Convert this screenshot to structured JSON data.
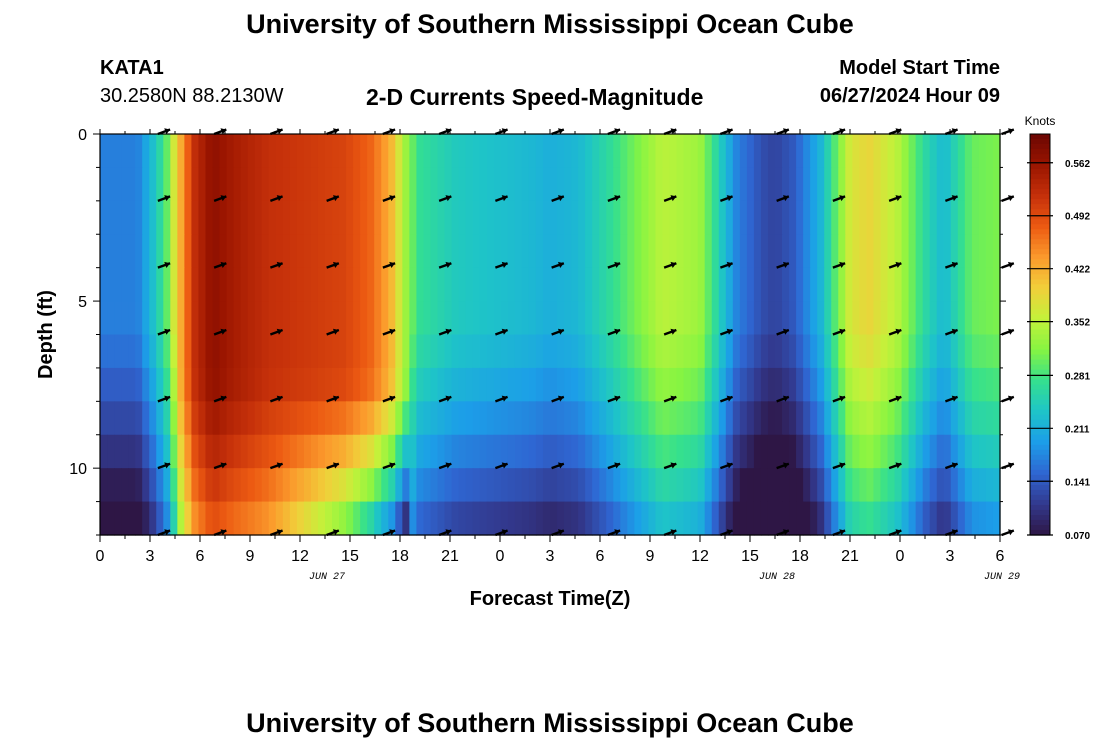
{
  "header": {
    "title": "University of Southern Mississippi Ocean Cube",
    "station": "KATA1",
    "coords": "30.2580N  88.2130W",
    "plot_title": "2-D Currents Speed-Magnitude",
    "model_start_label": "Model Start Time",
    "model_start_value": "06/27/2024 Hour 09",
    "footer_title": "University of Southern Mississippi Ocean Cube"
  },
  "colors": {
    "colormap": [
      "#2e1645",
      "#32398e",
      "#2f66d2",
      "#1c9ee8",
      "#1ec4c8",
      "#35e08e",
      "#86f442",
      "#c3f23a",
      "#f1cf3a",
      "#fb9a2c",
      "#ec5a12",
      "#c5300a",
      "#9a1500",
      "#6b0603"
    ],
    "arrow": "#000000",
    "frame": "#000000"
  },
  "chart_data": {
    "type": "heatmap",
    "title": "2-D Currents Speed-Magnitude",
    "xlabel": "Forecast Time(Z)",
    "ylabel": "Depth (ft)",
    "x_hours": [
      0,
      48
    ],
    "xticks": [
      "0",
      "3",
      "6",
      "9",
      "12",
      "15",
      "18",
      "21",
      "0",
      "3",
      "6",
      "9",
      "12",
      "15",
      "18",
      "21",
      "0",
      "3",
      "6"
    ],
    "date_labels": [
      {
        "label": "JUN 27",
        "hour": 12
      },
      {
        "label": "JUN 28",
        "hour": 36
      },
      {
        "label": "JUN 29",
        "hour": 48
      }
    ],
    "ylim": [
      0,
      12
    ],
    "yticks": [
      0,
      5,
      10
    ],
    "colorbar": {
      "title": "Knots",
      "range": [
        0.07,
        0.6
      ],
      "tick_labels": [
        "0.562",
        "0.492",
        "0.422",
        "0.352",
        "0.281",
        "0.211",
        "0.141",
        "0.070"
      ],
      "tick_values": [
        0.562,
        0.492,
        0.422,
        0.352,
        0.281,
        0.211,
        0.141,
        0.07
      ]
    },
    "speed_profile_hours": [
      0,
      2,
      3,
      3.6,
      4,
      5,
      6,
      7,
      9,
      11,
      13,
      14.5,
      15.5,
      16.3,
      17,
      19,
      21,
      23,
      24,
      25.5,
      27,
      29,
      30,
      32,
      33,
      34,
      34.7,
      35.3,
      36,
      37,
      38.5,
      40,
      41,
      42.5,
      44,
      45,
      46.5,
      48
    ],
    "speed_profile_knots": [
      0.17,
      0.17,
      0.24,
      0.3,
      0.38,
      0.52,
      0.57,
      0.55,
      0.52,
      0.51,
      0.5,
      0.47,
      0.42,
      0.33,
      0.27,
      0.24,
      0.23,
      0.22,
      0.21,
      0.22,
      0.26,
      0.32,
      0.35,
      0.33,
      0.25,
      0.17,
      0.15,
      0.13,
      0.12,
      0.14,
      0.22,
      0.37,
      0.39,
      0.35,
      0.26,
      0.22,
      0.3,
      0.31
    ],
    "arrow_hours": [
      3.3,
      6.3,
      9.3,
      12.3,
      15.3,
      18.3,
      21.3,
      24.3,
      27.3,
      30.3,
      33.3,
      36.3,
      39.3,
      42.3,
      45.3,
      48.3
    ],
    "arrow_depths": [
      0,
      2,
      4,
      6,
      8,
      10,
      12
    ],
    "arrow_direction_deg": 20
  }
}
